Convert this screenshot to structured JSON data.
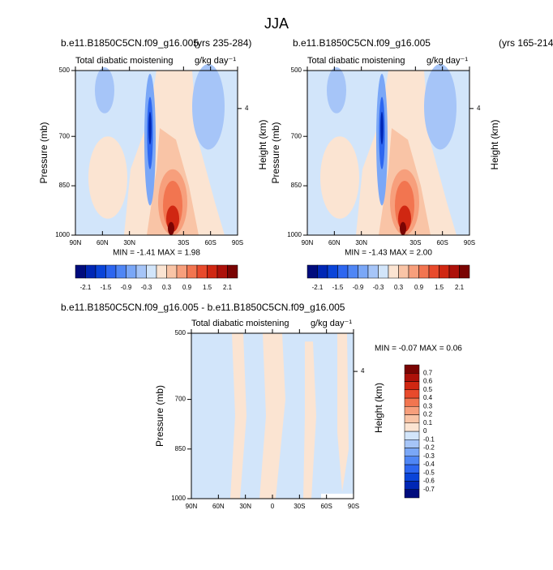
{
  "title": "JJA",
  "chart_data": [
    {
      "type": "contour",
      "title": "b.e11.B1850C5CN.f09_g16.005",
      "subtitle": "(yrs 235-284)",
      "left_label": "Total diabatic moistening",
      "units": "g/kg day⁻¹",
      "xlim": [
        90,
        -90
      ],
      "xticks": [
        {
          "value": 90,
          "label": "90N"
        },
        {
          "value": 60,
          "label": "60N"
        },
        {
          "value": 30,
          "label": "30N"
        },
        {
          "value": -30,
          "label": "30S"
        },
        {
          "value": -60,
          "label": "60S"
        },
        {
          "value": -90,
          "label": "90S"
        }
      ],
      "ylabel": "Pressure (mb)",
      "ylim": [
        1000,
        500
      ],
      "yticks": [
        500,
        700,
        850,
        1000
      ],
      "y2label": "Height (km)",
      "y2lim": [
        0,
        5.2
      ],
      "y2ticks": [
        4
      ],
      "stats": "MIN =  -1.41   MAX =   1.98",
      "colorbar": {
        "orientation": "horizontal",
        "lim": [
          -2.4,
          2.4
        ],
        "ticks": [
          -2.1,
          -1.5,
          -0.9,
          -0.3,
          0.3,
          0.9,
          1.5,
          2.1
        ],
        "colors": [
          "#000c7d",
          "#0027b5",
          "#0a44d9",
          "#2d66f0",
          "#4f86f5",
          "#7aa7f7",
          "#a6c5f8",
          "#d2e5fa",
          "#fbe4d2",
          "#f9c4a6",
          "#f79f7c",
          "#f27550",
          "#e84a2c",
          "#d02712",
          "#ad110a",
          "#7a0403"
        ]
      }
    },
    {
      "type": "contour",
      "title": "b.e11.B1850C5CN.f09_g16.005",
      "subtitle": "(yrs 165-214)",
      "left_label": "Total diabatic moistening",
      "units": "g/kg day⁻¹",
      "xlim": [
        90,
        -90
      ],
      "xticks": [
        {
          "value": 90,
          "label": "90N"
        },
        {
          "value": 60,
          "label": "60N"
        },
        {
          "value": 30,
          "label": "30N"
        },
        {
          "value": -30,
          "label": "30S"
        },
        {
          "value": -60,
          "label": "60S"
        },
        {
          "value": -90,
          "label": "90S"
        }
      ],
      "ylabel": "Pressure (mb)",
      "ylim": [
        1000,
        500
      ],
      "yticks": [
        500,
        700,
        850,
        1000
      ],
      "y2label": "Height (km)",
      "y2lim": [
        0,
        5.2
      ],
      "y2ticks": [
        4
      ],
      "stats": "MIN =  -1.43   MAX =   2.00",
      "colorbar": {
        "orientation": "horizontal",
        "lim": [
          -2.4,
          2.4
        ],
        "ticks": [
          -2.1,
          -1.5,
          -0.9,
          -0.3,
          0.3,
          0.9,
          1.5,
          2.1
        ],
        "colors": [
          "#000c7d",
          "#0027b5",
          "#0a44d9",
          "#2d66f0",
          "#4f86f5",
          "#7aa7f7",
          "#a6c5f8",
          "#d2e5fa",
          "#fbe4d2",
          "#f9c4a6",
          "#f79f7c",
          "#f27550",
          "#e84a2c",
          "#d02712",
          "#ad110a",
          "#7a0403"
        ]
      }
    },
    {
      "type": "contour",
      "title": "b.e11.B1850C5CN.f09_g16.005 - b.e11.B1850C5CN.f09_g16.005",
      "left_label": "Total diabatic moistening",
      "units": "g/kg day⁻¹",
      "xlim": [
        90,
        -90
      ],
      "xticks": [
        {
          "value": 90,
          "label": "90N"
        },
        {
          "value": 60,
          "label": "60N"
        },
        {
          "value": 30,
          "label": "30N"
        },
        0,
        {
          "value": -30,
          "label": "30S"
        },
        {
          "value": -60,
          "label": "60S"
        },
        {
          "value": -90,
          "label": "90S"
        }
      ],
      "ylabel": "Pressure (mb)",
      "ylim": [
        1000,
        500
      ],
      "yticks": [
        500,
        700,
        850,
        1000
      ],
      "y2label": "Height (km)",
      "y2lim": [
        0,
        5.2
      ],
      "y2ticks": [
        4
      ],
      "stats": "MIN =  -0.07   MAX =   0.06",
      "colorbar": {
        "orientation": "vertical",
        "lim": [
          -0.8,
          0.8
        ],
        "ticks": [
          -0.7,
          -0.6,
          -0.5,
          -0.4,
          -0.3,
          -0.2,
          -0.1,
          0,
          0.1,
          0.2,
          0.3,
          0.4,
          0.5,
          0.6,
          0.7
        ],
        "colors": [
          "#000c7d",
          "#0027b5",
          "#0a44d9",
          "#2d66f0",
          "#4f86f5",
          "#7aa7f7",
          "#a6c5f8",
          "#d2e5fa",
          "#fbe4d2",
          "#f9c4a6",
          "#f79f7c",
          "#f27550",
          "#e84a2c",
          "#d02712",
          "#ad110a",
          "#7a0403"
        ]
      }
    }
  ]
}
